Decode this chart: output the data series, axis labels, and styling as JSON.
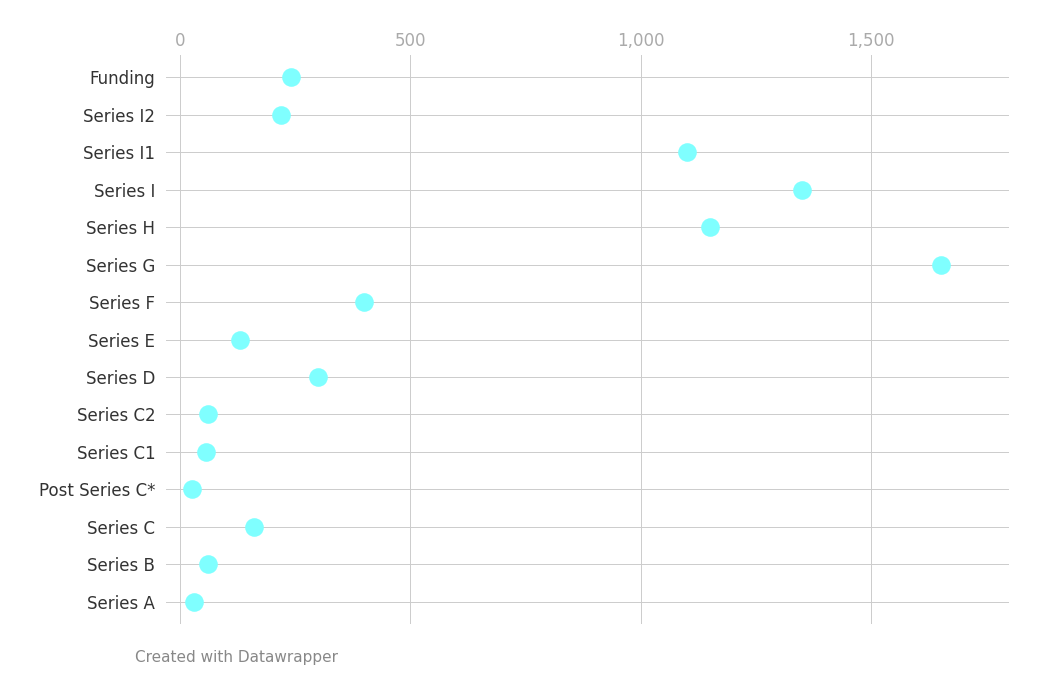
{
  "categories": [
    "Funding",
    "Series I2",
    "Series I1",
    "Series I",
    "Series H",
    "Series G",
    "Series F",
    "Series E",
    "Series D",
    "Series C2",
    "Series C1",
    "Post Series C*",
    "Series C",
    "Series B",
    "Series A"
  ],
  "values": [
    240,
    220,
    1100,
    1350,
    1150,
    1652,
    400,
    130,
    300,
    60,
    55,
    25,
    160,
    60,
    30
  ],
  "dot_color": "#7FFFFF",
  "dot_size": 180,
  "background_color": "#FFFFFF",
  "grid_color": "#CCCCCC",
  "footnote": "Created with Datawrapper",
  "footnote_color": "#888888",
  "footnote_fontsize": 11,
  "tick_label_color": "#AAAAAA",
  "category_label_color": "#333333",
  "category_label_fontsize": 12,
  "tick_label_fontsize": 12,
  "xlim_min": -30,
  "xlim_max": 1800,
  "xticks": [
    0,
    500,
    1000,
    1500
  ],
  "xtick_labels": [
    "0",
    "500",
    "1,000",
    "1,500"
  ]
}
